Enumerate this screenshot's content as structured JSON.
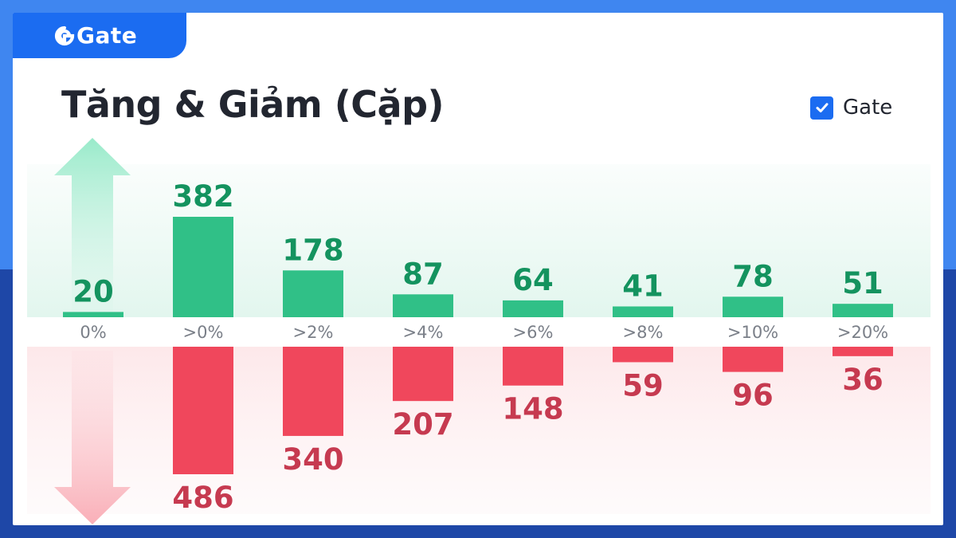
{
  "brand": {
    "logo_text": "Gate"
  },
  "title": "Tăng & Giảm (Cặp)",
  "legend": {
    "label": "Gate",
    "checked": true
  },
  "colors": {
    "up": "#30c087",
    "up_text": "#14935f",
    "down": "#f0475c",
    "down_text": "#c63a50",
    "accent": "#1b6cf1"
  },
  "icons": {
    "up_arrow": "arrow-up-icon",
    "down_arrow": "arrow-down-icon",
    "check": "check-icon"
  },
  "chart_data": {
    "type": "bar",
    "categories": [
      "0%",
      ">0%",
      ">2%",
      ">4%",
      ">6%",
      ">8%",
      ">10%",
      ">20%"
    ],
    "series": [
      {
        "values": [
          20,
          382,
          178,
          87,
          64,
          41,
          78,
          51
        ]
      },
      {
        "values": [
          null,
          486,
          340,
          207,
          148,
          59,
          96,
          36
        ]
      }
    ]
  }
}
